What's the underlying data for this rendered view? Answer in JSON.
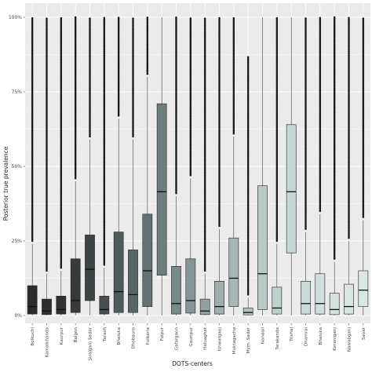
{
  "chart_data": {
    "type": "boxplot",
    "title": "",
    "xlabel": "DOTS-centers",
    "ylabel": "Posterior true prevalence",
    "ylim": [
      0,
      100
    ],
    "y_ticks": [
      0,
      25,
      50,
      75,
      100
    ],
    "y_tick_labels": [
      "0%",
      "25%",
      "50%",
      "75%",
      "100%"
    ],
    "grid": true,
    "legend": "none",
    "background": "#ebebeb",
    "gridline_color": "#ffffff",
    "outlier_color": "#1a1a1a",
    "boxes": [
      {
        "category": "Bolkuchi",
        "q1": 0.5,
        "median": 3,
        "q3": 10,
        "whisker_low": 0,
        "whisker_high": 24,
        "outlier_max": 100,
        "color": "#2b2b2b"
      },
      {
        "category": "Kamalkhanda",
        "q1": 0.3,
        "median": 1.5,
        "q3": 5.5,
        "whisker_low": 0,
        "whisker_high": 14,
        "outlier_max": 100,
        "color": "#2e2e2e"
      },
      {
        "category": "Kaurpur",
        "q1": 0.5,
        "median": 2,
        "q3": 6.5,
        "whisker_low": 0,
        "whisker_high": 15,
        "outlier_max": 100,
        "color": "#303233"
      },
      {
        "category": "Baigon",
        "q1": 1,
        "median": 5,
        "q3": 19,
        "whisker_low": 0,
        "whisker_high": 45,
        "outlier_max": 100,
        "color": "#363a3b"
      },
      {
        "category": "Sirajganj Sadar",
        "q1": 5,
        "median": 15.5,
        "q3": 27,
        "whisker_low": 0,
        "whisker_high": 59,
        "outlier_max": 100,
        "color": "#3e4546"
      },
      {
        "category": "Tarash",
        "q1": 0.5,
        "median": 2,
        "q3": 6.5,
        "whisker_low": 0,
        "whisker_high": 16,
        "outlier_max": 100,
        "color": "#474f50"
      },
      {
        "category": "Bhaluka",
        "q1": 1,
        "median": 8,
        "q3": 28,
        "whisker_low": 0,
        "whisker_high": 66,
        "outlier_max": 100,
        "color": "#4f5a5a"
      },
      {
        "category": "Dhobaura",
        "q1": 1,
        "median": 7,
        "q3": 22,
        "whisker_low": 0,
        "whisker_high": 59,
        "outlier_max": 100,
        "color": "#586566"
      },
      {
        "category": "Fulbaria",
        "q1": 3,
        "median": 15,
        "q3": 34,
        "whisker_low": 0,
        "whisker_high": 80,
        "outlier_max": 100,
        "color": "#637172"
      },
      {
        "category": "Fulpur",
        "q1": 13.5,
        "median": 41.5,
        "q3": 71,
        "whisker_low": 0,
        "whisker_high": 100,
        "outlier_max": 100,
        "color": "#6e7d7e"
      },
      {
        "category": "Gafargaon",
        "q1": 0.5,
        "median": 4,
        "q3": 16.5,
        "whisker_low": 0,
        "whisker_high": 40,
        "outlier_max": 100,
        "color": "#7a898a"
      },
      {
        "category": "Gauripur",
        "q1": 0.8,
        "median": 5,
        "q3": 19,
        "whisker_low": 0,
        "whisker_high": 46,
        "outlier_max": 100,
        "color": "#869596"
      },
      {
        "category": "Haluaghat",
        "q1": 0.3,
        "median": 1.5,
        "q3": 5.5,
        "whisker_low": 0,
        "whisker_high": 14,
        "outlier_max": 100,
        "color": "#92a1a2"
      },
      {
        "category": "Ishwarganj",
        "q1": 0.5,
        "median": 3,
        "q3": 11.5,
        "whisker_low": 0,
        "whisker_high": 29,
        "outlier_max": 100,
        "color": "#9daead"
      },
      {
        "category": "Muktagacha",
        "q1": 3,
        "median": 12.5,
        "q3": 26,
        "whisker_low": 0,
        "whisker_high": 60,
        "outlier_max": 100,
        "color": "#a7b8b7"
      },
      {
        "category": "Mym. Sadar",
        "q1": 0.2,
        "median": 1,
        "q3": 2.5,
        "whisker_low": 0,
        "whisker_high": 6,
        "outlier_max": 87,
        "color": "#b0c2c0"
      },
      {
        "category": "Nandail",
        "q1": 2,
        "median": 14,
        "q3": 43.5,
        "whisker_low": 0,
        "whisker_high": 100,
        "outlier_max": 100,
        "color": "#b8cac8"
      },
      {
        "category": "Tarakanda",
        "q1": 0.5,
        "median": 2.5,
        "q3": 9.5,
        "whisker_low": 0,
        "whisker_high": 24,
        "outlier_max": 100,
        "color": "#bfd1cf"
      },
      {
        "category": "Trishal",
        "q1": 21,
        "median": 41.5,
        "q3": 64,
        "whisker_low": 0,
        "whisker_high": 100,
        "outlier_max": 100,
        "color": "#c5d6d4"
      },
      {
        "category": "Dhamrai",
        "q1": 0.5,
        "median": 4,
        "q3": 11.5,
        "whisker_low": 0,
        "whisker_high": 28,
        "outlier_max": 100,
        "color": "#cadcd9"
      },
      {
        "category": "Bhaluka",
        "q1": 0.5,
        "median": 4,
        "q3": 14,
        "whisker_low": 0,
        "whisker_high": 34,
        "outlier_max": 100,
        "color": "#cee0dd"
      },
      {
        "category": "Keraniganj",
        "q1": 0.3,
        "median": 2,
        "q3": 7.5,
        "whisker_low": 0,
        "whisker_high": 18,
        "outlier_max": 100,
        "color": "#d2e3e0"
      },
      {
        "category": "Nawabganj",
        "q1": 0.5,
        "median": 3,
        "q3": 10.5,
        "whisker_low": 0,
        "whisker_high": 25,
        "outlier_max": 100,
        "color": "#d5e6e3"
      },
      {
        "category": "Savar",
        "q1": 3,
        "median": 8.5,
        "q3": 15,
        "whisker_low": 0,
        "whisker_high": 32,
        "outlier_max": 100,
        "color": "#d8e8e5"
      }
    ]
  }
}
